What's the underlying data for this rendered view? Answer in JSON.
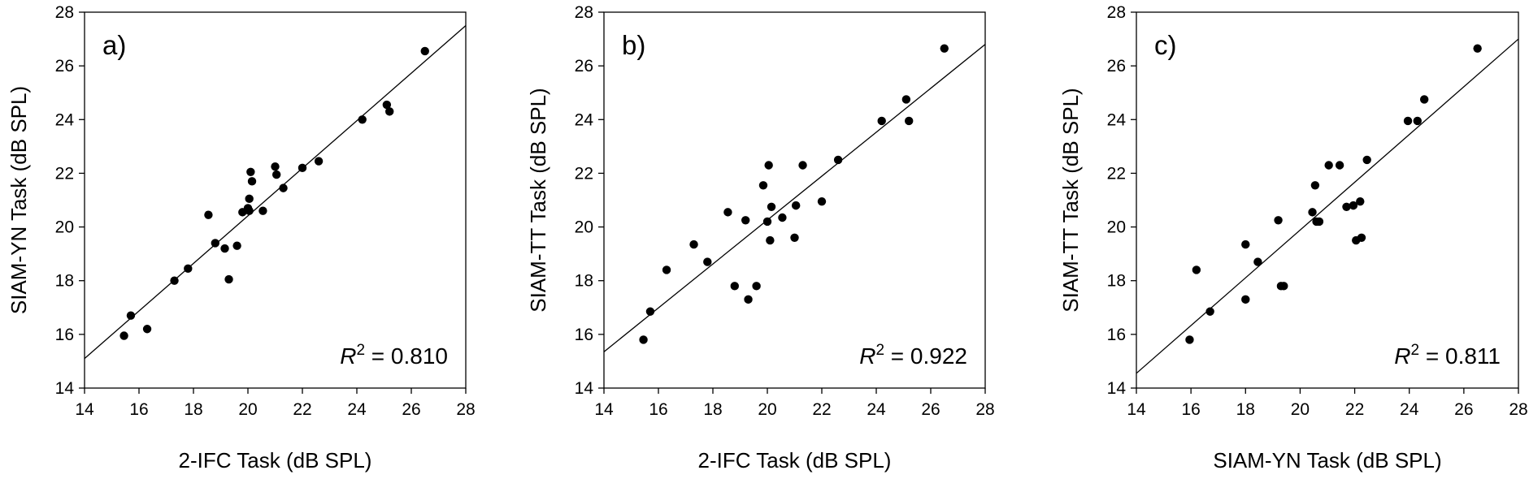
{
  "chart_data": [
    {
      "type": "scatter",
      "panel_label": "a)",
      "xlabel": "2-IFC Task (dB SPL)",
      "ylabel": "SIAM-YN Task (dB SPL)",
      "xlim": [
        14,
        28
      ],
      "ylim": [
        14,
        28
      ],
      "xticks": [
        "14",
        "16",
        "18",
        "20",
        "22",
        "24",
        "26",
        "28"
      ],
      "yticks": [
        "14",
        "16",
        "18",
        "20",
        "22",
        "24",
        "26",
        "28"
      ],
      "annotation": {
        "label": "R",
        "superscript": "2",
        "text": " = 0.810"
      },
      "fit_line": {
        "x": [
          14,
          28
        ],
        "y": [
          15.1,
          27.5
        ]
      },
      "points": [
        {
          "x": 15.45,
          "y": 15.95
        },
        {
          "x": 15.7,
          "y": 16.7
        },
        {
          "x": 16.3,
          "y": 16.2
        },
        {
          "x": 17.3,
          "y": 18.0
        },
        {
          "x": 17.8,
          "y": 18.45
        },
        {
          "x": 18.55,
          "y": 20.45
        },
        {
          "x": 18.8,
          "y": 19.4
        },
        {
          "x": 19.15,
          "y": 19.2
        },
        {
          "x": 19.3,
          "y": 18.05
        },
        {
          "x": 19.6,
          "y": 19.3
        },
        {
          "x": 19.8,
          "y": 20.55
        },
        {
          "x": 20.0,
          "y": 20.7
        },
        {
          "x": 20.05,
          "y": 21.05
        },
        {
          "x": 20.05,
          "y": 20.6
        },
        {
          "x": 20.1,
          "y": 22.05
        },
        {
          "x": 20.15,
          "y": 21.7
        },
        {
          "x": 20.55,
          "y": 20.6
        },
        {
          "x": 21.0,
          "y": 22.25
        },
        {
          "x": 21.05,
          "y": 21.95
        },
        {
          "x": 21.3,
          "y": 21.45
        },
        {
          "x": 22.0,
          "y": 22.2
        },
        {
          "x": 22.6,
          "y": 22.45
        },
        {
          "x": 24.2,
          "y": 24.0
        },
        {
          "x": 25.1,
          "y": 24.55
        },
        {
          "x": 25.2,
          "y": 24.3
        },
        {
          "x": 26.5,
          "y": 26.55
        }
      ]
    },
    {
      "type": "scatter",
      "panel_label": "b)",
      "xlabel": "2-IFC Task (dB SPL)",
      "ylabel": "SIAM-TT Task (dB SPL)",
      "xlim": [
        14,
        28
      ],
      "ylim": [
        14,
        28
      ],
      "xticks": [
        "14",
        "16",
        "18",
        "20",
        "22",
        "24",
        "26",
        "28"
      ],
      "yticks": [
        "14",
        "16",
        "18",
        "20",
        "22",
        "24",
        "26",
        "28"
      ],
      "annotation": {
        "label": "R",
        "superscript": "2",
        "text": " = 0.922"
      },
      "fit_line": {
        "x": [
          14,
          28
        ],
        "y": [
          15.35,
          26.8
        ]
      },
      "points": [
        {
          "x": 15.45,
          "y": 15.8
        },
        {
          "x": 15.7,
          "y": 16.85
        },
        {
          "x": 16.3,
          "y": 18.4
        },
        {
          "x": 17.3,
          "y": 19.35
        },
        {
          "x": 17.8,
          "y": 18.7
        },
        {
          "x": 18.55,
          "y": 20.55
        },
        {
          "x": 18.8,
          "y": 17.8
        },
        {
          "x": 19.2,
          "y": 20.25
        },
        {
          "x": 19.3,
          "y": 17.3
        },
        {
          "x": 19.6,
          "y": 17.8
        },
        {
          "x": 19.85,
          "y": 21.55
        },
        {
          "x": 20.0,
          "y": 20.2
        },
        {
          "x": 20.05,
          "y": 22.3
        },
        {
          "x": 20.1,
          "y": 19.5
        },
        {
          "x": 20.15,
          "y": 20.75
        },
        {
          "x": 20.55,
          "y": 20.35
        },
        {
          "x": 21.0,
          "y": 19.6
        },
        {
          "x": 21.05,
          "y": 20.8
        },
        {
          "x": 21.3,
          "y": 22.3
        },
        {
          "x": 22.0,
          "y": 20.95
        },
        {
          "x": 22.6,
          "y": 22.5
        },
        {
          "x": 24.2,
          "y": 23.95
        },
        {
          "x": 25.1,
          "y": 24.75
        },
        {
          "x": 25.2,
          "y": 23.95
        },
        {
          "x": 26.5,
          "y": 26.65
        }
      ]
    },
    {
      "type": "scatter",
      "panel_label": "c)",
      "xlabel": "SIAM-YN Task (dB SPL)",
      "ylabel": "SIAM-TT Task (dB SPL)",
      "xlim": [
        14,
        28
      ],
      "ylim": [
        14,
        28
      ],
      "xticks": [
        "14",
        "16",
        "18",
        "20",
        "22",
        "24",
        "26",
        "28"
      ],
      "yticks": [
        "14",
        "16",
        "18",
        "20",
        "22",
        "24",
        "26",
        "28"
      ],
      "annotation": {
        "label": "R",
        "superscript": "2",
        "text": " = 0.811"
      },
      "fit_line": {
        "x": [
          14,
          28
        ],
        "y": [
          14.55,
          27.0
        ]
      },
      "points": [
        {
          "x": 15.95,
          "y": 15.8
        },
        {
          "x": 16.2,
          "y": 18.4
        },
        {
          "x": 16.7,
          "y": 16.85
        },
        {
          "x": 18.0,
          "y": 17.3
        },
        {
          "x": 18.0,
          "y": 19.35
        },
        {
          "x": 18.45,
          "y": 18.7
        },
        {
          "x": 19.2,
          "y": 20.25
        },
        {
          "x": 19.3,
          "y": 17.8
        },
        {
          "x": 19.4,
          "y": 17.8
        },
        {
          "x": 20.45,
          "y": 20.55
        },
        {
          "x": 20.55,
          "y": 21.55
        },
        {
          "x": 20.6,
          "y": 20.2
        },
        {
          "x": 20.7,
          "y": 20.2
        },
        {
          "x": 21.05,
          "y": 22.3
        },
        {
          "x": 21.45,
          "y": 22.3
        },
        {
          "x": 21.7,
          "y": 20.75
        },
        {
          "x": 21.95,
          "y": 20.8
        },
        {
          "x": 22.05,
          "y": 19.5
        },
        {
          "x": 22.2,
          "y": 20.95
        },
        {
          "x": 22.25,
          "y": 19.6
        },
        {
          "x": 22.45,
          "y": 22.5
        },
        {
          "x": 23.95,
          "y": 23.95
        },
        {
          "x": 24.3,
          "y": 23.95
        },
        {
          "x": 24.55,
          "y": 24.75
        },
        {
          "x": 26.5,
          "y": 26.65
        }
      ]
    }
  ]
}
